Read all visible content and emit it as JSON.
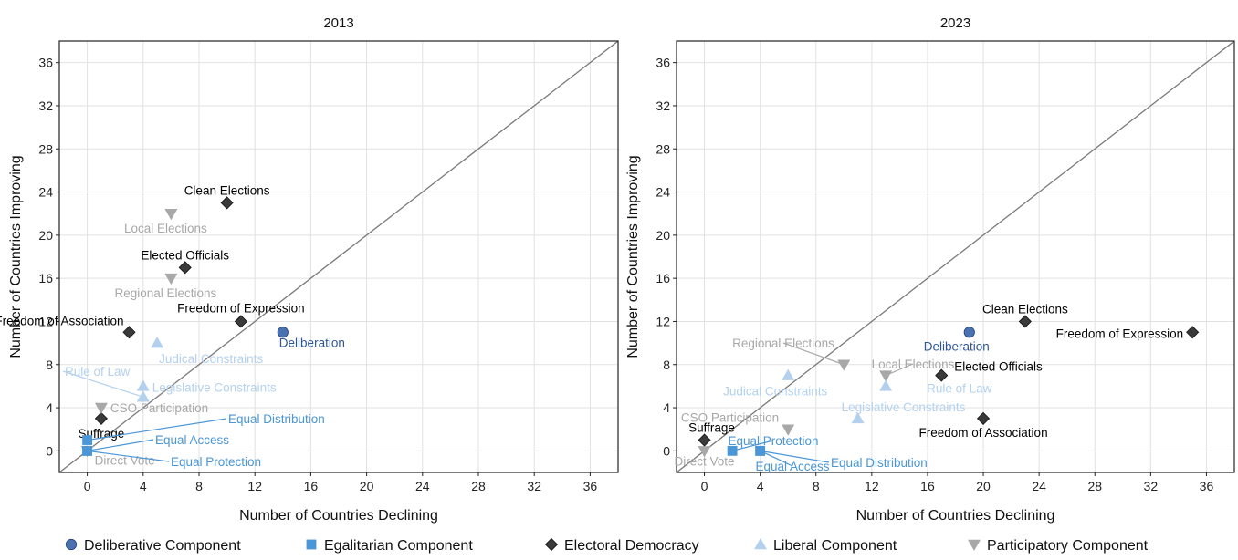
{
  "colors": {
    "deliberative": "#4a72b0",
    "egalitarian": "#4a96d6",
    "electoral": "#3a3a3a",
    "liberal": "#b3d1ee",
    "participatory": "#a8a8a8",
    "grid": "#e2e2e2",
    "diagonal": "#7a7a7a",
    "deliberative_label": "#2e5597"
  },
  "legend": [
    {
      "key": "deliberative",
      "label": "Deliberative Component",
      "marker": "circle"
    },
    {
      "key": "egalitarian",
      "label": "Egalitarian Component",
      "marker": "square"
    },
    {
      "key": "electoral",
      "label": "Electoral Democracy",
      "marker": "diamond"
    },
    {
      "key": "liberal",
      "label": "Liberal Component",
      "marker": "triangle-up"
    },
    {
      "key": "participatory",
      "label": "Participatory Component",
      "marker": "triangle-down"
    }
  ],
  "chart_data": [
    {
      "type": "scatter",
      "title": "2013",
      "xlabel": "Number of Countries Declining",
      "ylabel": "Number of Countries Improving",
      "xlim": [
        -2,
        38
      ],
      "ylim": [
        -2,
        38
      ],
      "xticks": [
        0,
        4,
        8,
        12,
        16,
        20,
        24,
        28,
        32,
        36
      ],
      "yticks": [
        0,
        4,
        8,
        12,
        16,
        20,
        24,
        28,
        32,
        36
      ],
      "grid": true,
      "diagonal": true,
      "legend_position": "bottom",
      "points": [
        {
          "label": "Clean Elections",
          "x": 10,
          "y": 23,
          "component": "electoral"
        },
        {
          "label": "Elected Officials",
          "x": 7,
          "y": 17,
          "component": "electoral"
        },
        {
          "label": "Freedom of Expression",
          "x": 11,
          "y": 12,
          "component": "electoral"
        },
        {
          "label": "Freedom of Association",
          "x": 3,
          "y": 11,
          "component": "electoral"
        },
        {
          "label": "Suffrage",
          "x": 1,
          "y": 3,
          "component": "electoral"
        },
        {
          "label": "Local Elections",
          "x": 6,
          "y": 22,
          "component": "participatory"
        },
        {
          "label": "Regional Elections",
          "x": 6,
          "y": 16,
          "component": "participatory"
        },
        {
          "label": "CSO Participation",
          "x": 1,
          "y": 4,
          "component": "participatory"
        },
        {
          "label": "Direct Vote",
          "x": 0,
          "y": 0,
          "component": "participatory"
        },
        {
          "label": "Deliberation",
          "x": 14,
          "y": 11,
          "component": "deliberative"
        },
        {
          "label": "Judical Constraints",
          "x": 5,
          "y": 10,
          "component": "liberal"
        },
        {
          "label": "Legislative Constraints",
          "x": 4,
          "y": 6,
          "component": "liberal"
        },
        {
          "label": "Rule of Law",
          "x": 4,
          "y": 5,
          "component": "liberal"
        },
        {
          "label": "Equal Distribution",
          "x": 0,
          "y": 1,
          "component": "egalitarian"
        },
        {
          "label": "Equal Access",
          "x": 0,
          "y": 0,
          "component": "egalitarian"
        },
        {
          "label": "Equal Protection",
          "x": 0,
          "y": 0,
          "component": "egalitarian"
        }
      ]
    },
    {
      "type": "scatter",
      "title": "2023",
      "xlabel": "Number of Countries Declining",
      "ylabel": "Number of Countries Improving",
      "xlim": [
        -2,
        38
      ],
      "ylim": [
        -2,
        38
      ],
      "xticks": [
        0,
        4,
        8,
        12,
        16,
        20,
        24,
        28,
        32,
        36
      ],
      "yticks": [
        0,
        4,
        8,
        12,
        16,
        20,
        24,
        28,
        32,
        36
      ],
      "grid": true,
      "diagonal": true,
      "legend_position": "bottom",
      "points": [
        {
          "label": "Clean Elections",
          "x": 23,
          "y": 12,
          "component": "electoral"
        },
        {
          "label": "Freedom of Expression",
          "x": 35,
          "y": 11,
          "component": "electoral"
        },
        {
          "label": "Elected Officials",
          "x": 17,
          "y": 7,
          "component": "electoral"
        },
        {
          "label": "Freedom of Association",
          "x": 20,
          "y": 3,
          "component": "electoral"
        },
        {
          "label": "Suffrage",
          "x": 0,
          "y": 1,
          "component": "electoral"
        },
        {
          "label": "Deliberation",
          "x": 19,
          "y": 11,
          "component": "deliberative"
        },
        {
          "label": "Regional Elections",
          "x": 10,
          "y": 8,
          "component": "participatory"
        },
        {
          "label": "Local Elections",
          "x": 13,
          "y": 7,
          "component": "participatory"
        },
        {
          "label": "CSO Participation",
          "x": 6,
          "y": 2,
          "component": "participatory"
        },
        {
          "label": "Direct Vote",
          "x": 0,
          "y": 0,
          "component": "participatory"
        },
        {
          "label": "Judical Constraints",
          "x": 6,
          "y": 7,
          "component": "liberal"
        },
        {
          "label": "Rule of Law",
          "x": 13,
          "y": 6,
          "component": "liberal"
        },
        {
          "label": "Legislative Constraints",
          "x": 11,
          "y": 3,
          "component": "liberal"
        },
        {
          "label": "Equal Protection",
          "x": 2,
          "y": 0,
          "component": "egalitarian"
        },
        {
          "label": "Equal Distribution",
          "x": 4,
          "y": 0,
          "component": "egalitarian"
        },
        {
          "label": "Equal Access",
          "x": 4,
          "y": 0,
          "component": "egalitarian"
        }
      ]
    }
  ]
}
